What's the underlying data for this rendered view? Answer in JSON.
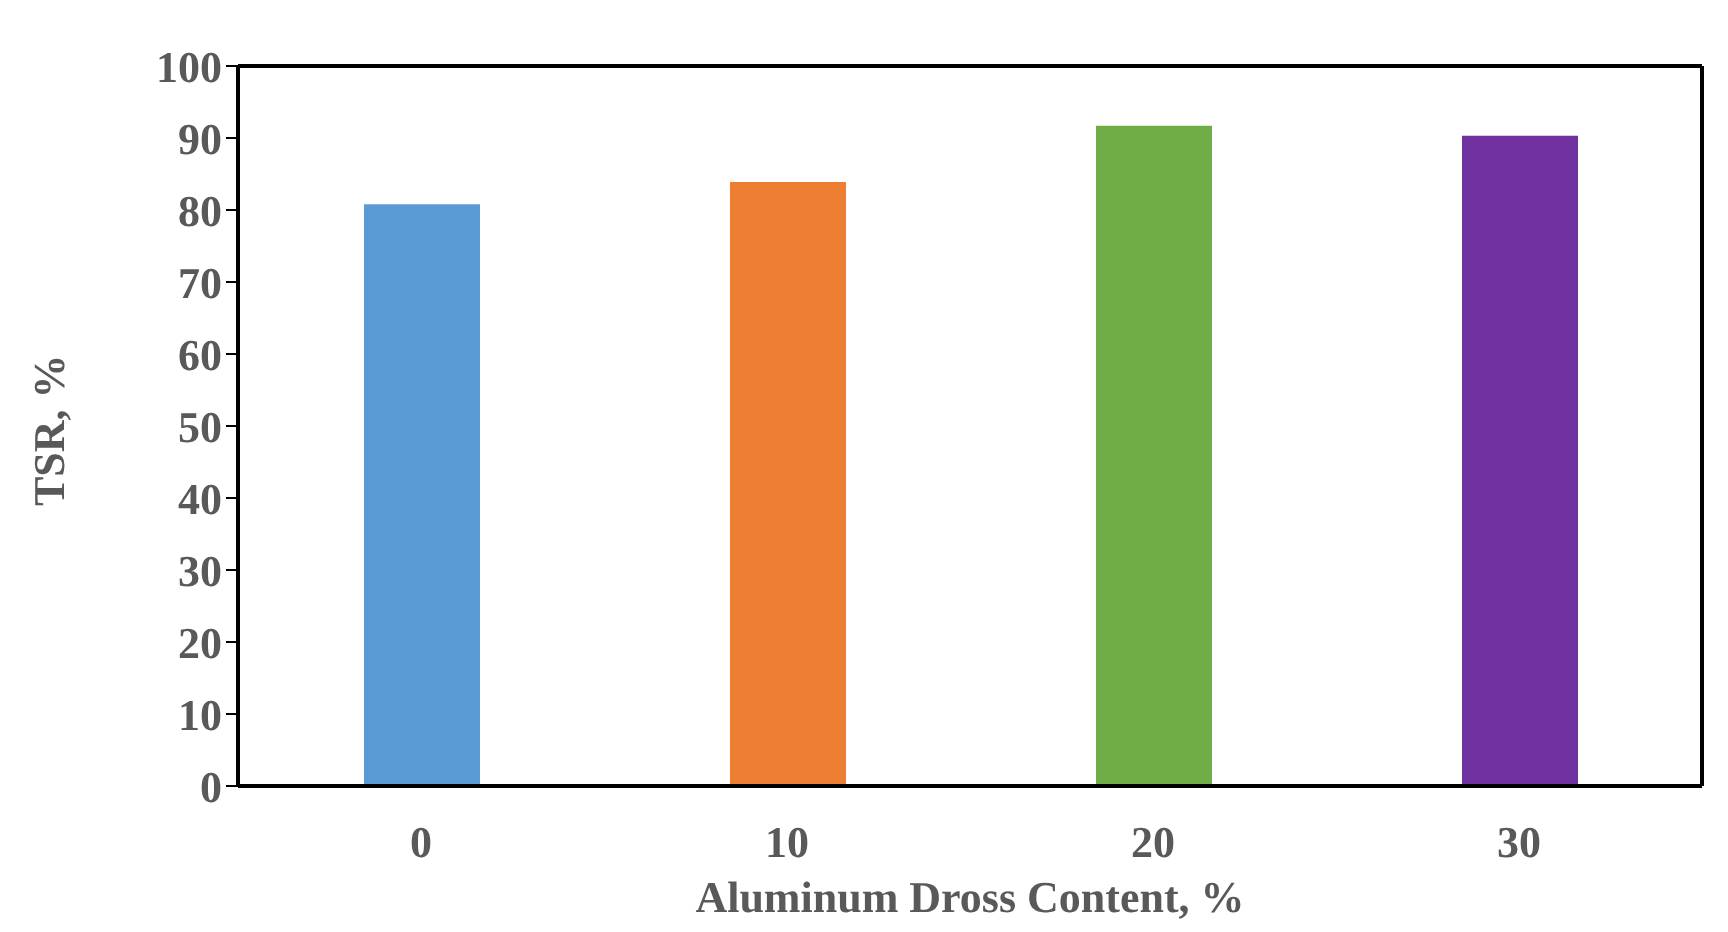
{
  "chart_data": {
    "type": "bar",
    "xlabel": "Aluminum Dross Content, %",
    "ylabel": "TSR, %",
    "categories": [
      "0",
      "10",
      "20",
      "30"
    ],
    "values": [
      80.8,
      83.9,
      91.7,
      90.3
    ],
    "colors": [
      "#5b9bd5",
      "#ed7d31",
      "#70ad47",
      "#7030a0"
    ],
    "ylim": [
      0,
      100
    ],
    "yticks": [
      0,
      10,
      20,
      30,
      40,
      50,
      60,
      70,
      80,
      90,
      100
    ],
    "grid": false,
    "legend": false
  }
}
